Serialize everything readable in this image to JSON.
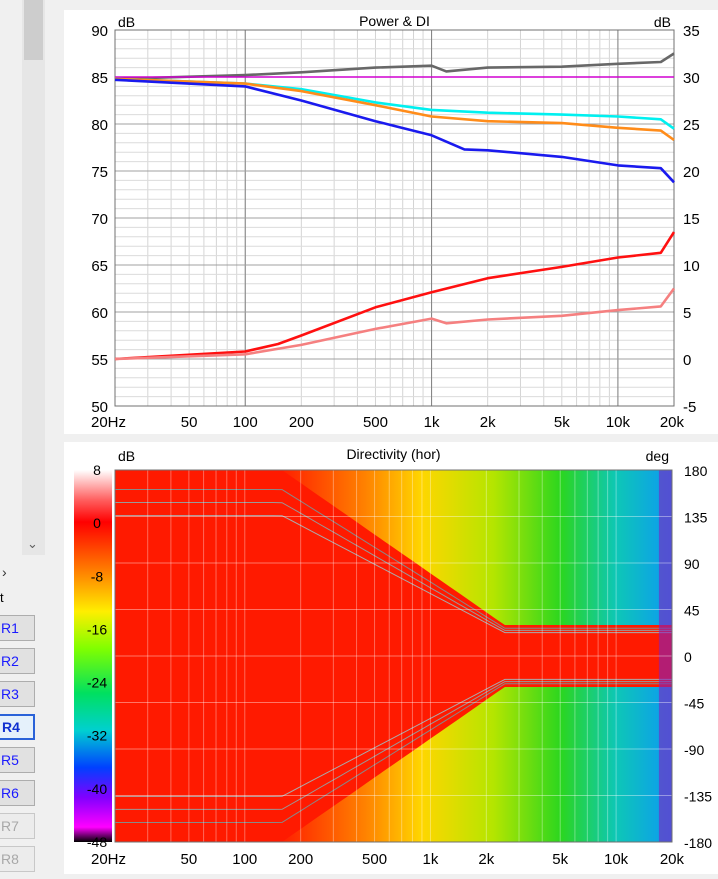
{
  "sidebar": {
    "group_label": "t",
    "buttons": [
      {
        "label": "R1",
        "state": "normal"
      },
      {
        "label": "R2",
        "state": "normal"
      },
      {
        "label": "R3",
        "state": "normal"
      },
      {
        "label": "R4",
        "state": "active"
      },
      {
        "label": "R5",
        "state": "normal"
      },
      {
        "label": "R6",
        "state": "normal"
      },
      {
        "label": "R7",
        "state": "disabled"
      },
      {
        "label": "R8",
        "state": "disabled"
      }
    ]
  },
  "chart_data": [
    {
      "type": "line",
      "title": "Power & DI",
      "y_left_label": "dB",
      "y_right_label": "dB",
      "x_scale": "log",
      "xlim": [
        20,
        20000
      ],
      "ylim_left": [
        50,
        90
      ],
      "ylim_right": [
        -5,
        35
      ],
      "x_ticks": [
        {
          "v": 20,
          "l": "20Hz"
        },
        {
          "v": 50,
          "l": "50"
        },
        {
          "v": 100,
          "l": "100"
        },
        {
          "v": 200,
          "l": "200"
        },
        {
          "v": 500,
          "l": "500"
        },
        {
          "v": 1000,
          "l": "1k"
        },
        {
          "v": 2000,
          "l": "2k"
        },
        {
          "v": 5000,
          "l": "5k"
        },
        {
          "v": 10000,
          "l": "10k"
        },
        {
          "v": 20000,
          "l": "20k"
        }
      ],
      "y_left_ticks": [
        50,
        55,
        60,
        65,
        70,
        75,
        80,
        85,
        90
      ],
      "y_right_ticks": [
        -5,
        0,
        5,
        10,
        15,
        20,
        25,
        30,
        35
      ],
      "grid": true,
      "series": [
        {
          "color": "#686868",
          "axis": "left",
          "x": [
            20,
            100,
            200,
            500,
            1000,
            1200,
            2000,
            5000,
            10000,
            17000,
            20000
          ],
          "y": [
            84.8,
            85.2,
            85.5,
            86,
            86.2,
            85.6,
            86,
            86.1,
            86.4,
            86.6,
            87.5
          ]
        },
        {
          "color": "#d000d0",
          "axis": "left",
          "x": [
            20,
            20000
          ],
          "y": [
            85,
            85
          ]
        },
        {
          "color": "#00f0f0",
          "axis": "left",
          "x": [
            20,
            100,
            200,
            500,
            1000,
            2000,
            5000,
            10000,
            17000,
            20000
          ],
          "y": [
            84.8,
            84.3,
            83.7,
            82.3,
            81.5,
            81.2,
            81,
            80.8,
            80.5,
            79.5
          ]
        },
        {
          "color": "#ff8c1a",
          "axis": "left",
          "x": [
            20,
            100,
            200,
            500,
            1000,
            2000,
            5000,
            10000,
            17000,
            20000
          ],
          "y": [
            84.8,
            84.3,
            83.5,
            82,
            80.8,
            80.3,
            80.1,
            79.6,
            79.3,
            78.3
          ]
        },
        {
          "color": "#1a1aee",
          "axis": "left",
          "x": [
            20,
            100,
            200,
            500,
            1000,
            1500,
            2000,
            5000,
            10000,
            17000,
            20000
          ],
          "y": [
            84.7,
            84,
            82.5,
            80.3,
            78.8,
            77.3,
            77.2,
            76.5,
            75.6,
            75.3,
            73.8
          ]
        },
        {
          "color": "#ff1010",
          "axis": "right",
          "x": [
            20,
            100,
            150,
            200,
            500,
            1000,
            2000,
            5000,
            10000,
            17000,
            20000
          ],
          "y": [
            0,
            0.8,
            1.6,
            2.5,
            5.5,
            7.1,
            8.6,
            9.8,
            10.8,
            11.3,
            13.5
          ]
        },
        {
          "color": "#f58080",
          "axis": "right",
          "x": [
            20,
            100,
            200,
            500,
            1000,
            1200,
            2000,
            5000,
            10000,
            17000,
            20000
          ],
          "y": [
            0,
            0.5,
            1.5,
            3.2,
            4.3,
            3.8,
            4.2,
            4.6,
            5.2,
            5.6,
            7.5
          ]
        }
      ]
    },
    {
      "type": "heatmap",
      "title": "Directivity (hor)",
      "y_left_label": "dB",
      "y_right_label": "deg",
      "x_scale": "log",
      "xlim": [
        20,
        20000
      ],
      "ylim": [
        -180,
        180
      ],
      "x_ticks": [
        {
          "v": 20,
          "l": "20Hz"
        },
        {
          "v": 50,
          "l": "50"
        },
        {
          "v": 100,
          "l": "100"
        },
        {
          "v": 200,
          "l": "200"
        },
        {
          "v": 500,
          "l": "500"
        },
        {
          "v": 1000,
          "l": "1k"
        },
        {
          "v": 2000,
          "l": "2k"
        },
        {
          "v": 5000,
          "l": "5k"
        },
        {
          "v": 10000,
          "l": "10k"
        },
        {
          "v": 20000,
          "l": "20k"
        }
      ],
      "y_ticks": [
        180,
        135,
        90,
        45,
        0,
        -45,
        -90,
        -135,
        -180
      ],
      "colorbar": {
        "range": [
          -48,
          8
        ],
        "ticks": [
          8,
          0,
          -8,
          -16,
          -24,
          -32,
          -40,
          -48
        ]
      },
      "grid": true
    }
  ]
}
